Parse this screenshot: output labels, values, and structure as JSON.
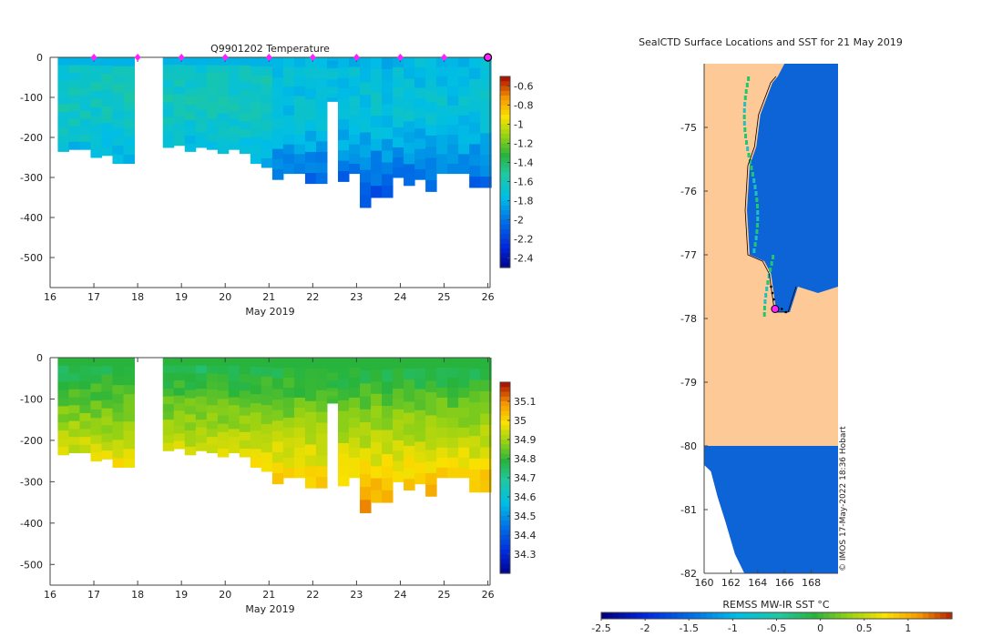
{
  "chart_data": [
    {
      "type": "heatmap",
      "title": "Q9901202  Temperature",
      "xlabel": "May 2019",
      "ylabel": "",
      "x_ticks": [
        16,
        17,
        18,
        19,
        20,
        21,
        22,
        23,
        24,
        25,
        26
      ],
      "y_ticks": [
        0,
        -100,
        -200,
        -300,
        -400,
        -500
      ],
      "xlim": [
        16,
        26.05
      ],
      "ylim": [
        -575,
        0
      ],
      "colorbar": {
        "ticks": [
          -0.6,
          -0.8,
          -1,
          -1.2,
          -1.4,
          -1.6,
          -1.8,
          -2,
          -2.2,
          -2.4
        ],
        "tick_labels": [
          "-0.6",
          "-0.8",
          "-1",
          "-1.2",
          "-1.4",
          "-1.6",
          "-1.8",
          "-2",
          "-2.2",
          "-2.4"
        ],
        "range": [
          -2.5,
          -0.5
        ]
      },
      "profile_marker_days": [
        17,
        18,
        19,
        20,
        21,
        22,
        23,
        24,
        25
      ],
      "last_marker_day": 26,
      "profiles": [
        {
          "day": 16.3,
          "depth": 235
        },
        {
          "day": 16.55,
          "depth": 230
        },
        {
          "day": 16.8,
          "depth": 230
        },
        {
          "day": 17.05,
          "depth": 250
        },
        {
          "day": 17.3,
          "depth": 245
        },
        {
          "day": 17.55,
          "depth": 265
        },
        {
          "day": 17.8,
          "depth": 265
        },
        {
          "day": 18.7,
          "depth": 225
        },
        {
          "day": 18.95,
          "depth": 220
        },
        {
          "day": 19.2,
          "depth": 235
        },
        {
          "day": 19.45,
          "depth": 225
        },
        {
          "day": 19.7,
          "depth": 230
        },
        {
          "day": 19.95,
          "depth": 240
        },
        {
          "day": 20.2,
          "depth": 230
        },
        {
          "day": 20.45,
          "depth": 240
        },
        {
          "day": 20.7,
          "depth": 265
        },
        {
          "day": 20.95,
          "depth": 275
        },
        {
          "day": 21.2,
          "depth": 305
        },
        {
          "day": 21.45,
          "depth": 290
        },
        {
          "day": 21.7,
          "depth": 290
        },
        {
          "day": 21.95,
          "depth": 315
        },
        {
          "day": 22.2,
          "depth": 315
        },
        {
          "day": 22.45,
          "depth": 110
        },
        {
          "day": 22.7,
          "depth": 310
        },
        {
          "day": 22.95,
          "depth": 290
        },
        {
          "day": 23.2,
          "depth": 375
        },
        {
          "day": 23.45,
          "depth": 350
        },
        {
          "day": 23.7,
          "depth": 350
        },
        {
          "day": 23.95,
          "depth": 300
        },
        {
          "day": 24.2,
          "depth": 320
        },
        {
          "day": 24.45,
          "depth": 305
        },
        {
          "day": 24.7,
          "depth": 335
        },
        {
          "day": 24.95,
          "depth": 290
        },
        {
          "day": 25.2,
          "depth": 290
        },
        {
          "day": 25.45,
          "depth": 290
        },
        {
          "day": 25.7,
          "depth": 325
        },
        {
          "day": 25.95,
          "depth": 325
        }
      ]
    },
    {
      "type": "heatmap",
      "title": "",
      "xlabel": "May 2019",
      "ylabel": "",
      "x_ticks": [
        16,
        17,
        18,
        19,
        20,
        21,
        22,
        23,
        24,
        25,
        26
      ],
      "y_ticks": [
        0,
        -100,
        -200,
        -300,
        -400,
        -500
      ],
      "xlim": [
        16,
        26.05
      ],
      "ylim": [
        -550,
        0
      ],
      "colorbar": {
        "ticks": [
          35.1,
          35,
          34.9,
          34.8,
          34.7,
          34.6,
          34.5,
          34.4,
          34.3
        ],
        "tick_labels": [
          "35.1",
          "35",
          "34.9",
          "34.8",
          "34.7",
          "34.6",
          "34.5",
          "34.4",
          "34.3"
        ],
        "range": [
          34.2,
          35.2
        ]
      }
    },
    {
      "type": "heatmap",
      "title": "SealCTD Surface Locations and SST for 21 May 2019",
      "xlabel": "",
      "ylabel": "",
      "x_ticks": [
        160,
        162,
        164,
        166,
        168
      ],
      "y_ticks": [
        -75,
        -76,
        -77,
        -78,
        -79,
        -80,
        -81,
        -82
      ],
      "xlim": [
        160,
        170
      ],
      "ylim": [
        -82,
        -74
      ],
      "colorbar": {
        "label": "REMSS MW-IR SST °C",
        "ticks": [
          -2.5,
          -2,
          -1.5,
          -1,
          -0.5,
          0,
          0.5,
          1
        ],
        "tick_labels": [
          "-2.5",
          "-2",
          "-1.5",
          "-1",
          "-0.5",
          "0",
          "0.5",
          "1"
        ],
        "range": [
          -2.5,
          1.5
        ]
      },
      "credit": "© IMOS 17-May-2022 18:36 Hobart",
      "seal_position": {
        "lon": 165.3,
        "lat": -77.85
      }
    }
  ]
}
